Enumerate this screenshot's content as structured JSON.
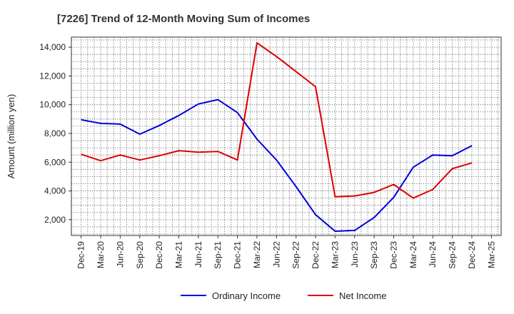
{
  "chart_data": {
    "type": "line",
    "title": "[7226]  Trend of 12-Month Moving Sum of Incomes",
    "xlabel": "",
    "ylabel": "Amount (million yen)",
    "ylim": [
      900,
      14700
    ],
    "yticks": [
      2000,
      4000,
      6000,
      8000,
      10000,
      12000,
      14000
    ],
    "ytick_labels": [
      "2,000",
      "4,000",
      "6,000",
      "8,000",
      "10,000",
      "12,000",
      "14,000"
    ],
    "categories": [
      "Dec-19",
      "Mar-20",
      "Jun-20",
      "Sep-20",
      "Dec-20",
      "Mar-21",
      "Jun-21",
      "Sep-21",
      "Dec-21",
      "Mar-22",
      "Jun-22",
      "Sep-22",
      "Dec-22",
      "Mar-23",
      "Jun-23",
      "Sep-23",
      "Dec-23",
      "Mar-24",
      "Jun-24",
      "Sep-24",
      "Dec-24",
      "Mar-25"
    ],
    "grid": true,
    "legend_position": "bottom-center",
    "series": [
      {
        "name": "Ordinary Income",
        "color": "#0000dd",
        "values": [
          8950,
          8700,
          8650,
          7950,
          8550,
          9250,
          10050,
          10350,
          9450,
          7600,
          6150,
          4300,
          2350,
          1200,
          1250,
          2150,
          3550,
          5650,
          6500,
          6450,
          7150,
          null
        ]
      },
      {
        "name": "Net Income",
        "color": "#dd0000",
        "values": [
          6550,
          6100,
          6500,
          6150,
          6450,
          6800,
          6700,
          6750,
          6150,
          14300,
          13350,
          12300,
          11250,
          3600,
          3650,
          3900,
          4450,
          3500,
          4100,
          5550,
          5950,
          null
        ]
      }
    ]
  }
}
